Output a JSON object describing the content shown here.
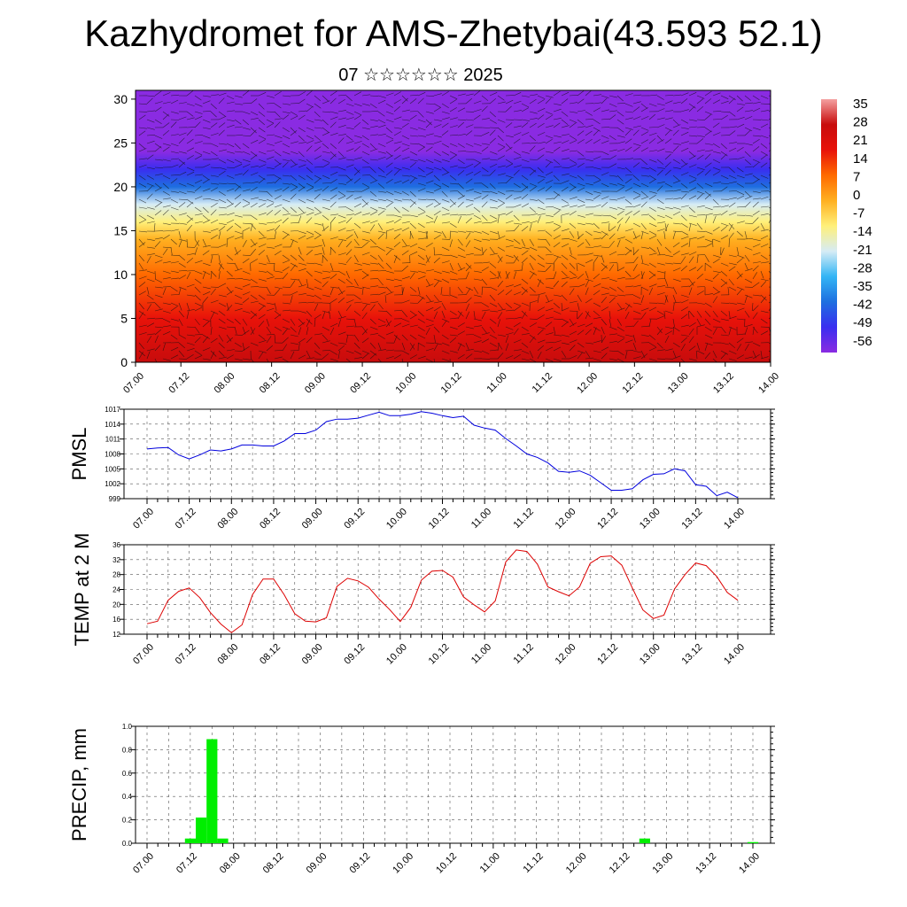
{
  "title": "Kazhydromet for AMS-Zhetybai(43.593 52.1)",
  "subtitle": "07 ☆☆☆☆☆☆ 2025",
  "time_labels": [
    "07.00",
    "07.12",
    "08.00",
    "08.12",
    "09.00",
    "09.12",
    "10.00",
    "10.12",
    "11.00",
    "11.12",
    "12.00",
    "12.12",
    "13.00",
    "13.12",
    "14.00"
  ],
  "chart_data": [
    {
      "type": "heatmap",
      "title": "",
      "ylabel": "",
      "ylim": [
        0,
        31
      ],
      "yticks": [
        0,
        5,
        10,
        15,
        20,
        25,
        30
      ],
      "x": [
        "07.00",
        "07.12",
        "08.00",
        "08.12",
        "09.00",
        "09.12",
        "10.00",
        "10.12",
        "11.00",
        "11.12",
        "12.00",
        "12.12",
        "13.00",
        "13.12",
        "14.00"
      ],
      "colorbar": {
        "labels": [
          "35",
          "28",
          "21",
          "14",
          "7",
          "0",
          "-7",
          "-14",
          "-21",
          "-28",
          "-35",
          "-42",
          "-49",
          "-56"
        ],
        "range": [
          -56,
          35
        ],
        "colors": [
          "#8a2be2",
          "#3a2ef0",
          "#1e6fe0",
          "#33b5f5",
          "#d6ecf5",
          "#fff07a",
          "#ffb020",
          "#ff6a00",
          "#e8120a",
          "#c80c0c",
          "#f4a0a0"
        ]
      },
      "temperature_profile_c": {
        "heights": [
          0,
          5,
          10,
          14,
          16,
          18,
          20,
          22,
          24,
          26,
          28,
          31
        ],
        "values": [
          25,
          18,
          7,
          -3,
          -13,
          -24,
          -36,
          -48,
          -54,
          -58,
          -60,
          -62
        ]
      },
      "overlay": "wind barbs"
    },
    {
      "type": "line",
      "ylabel": "PMSL",
      "ylim": [
        999,
        1017
      ],
      "yticks": [
        999,
        1002,
        1005,
        1008,
        1011,
        1014,
        1017
      ],
      "color": "#0000dd",
      "x_step_hours": 3,
      "values": [
        1009.0,
        1009.2,
        1009.3,
        1007.8,
        1007.0,
        1007.8,
        1008.8,
        1008.6,
        1009.0,
        1009.8,
        1009.8,
        1009.6,
        1009.6,
        1010.6,
        1012.1,
        1012.1,
        1012.8,
        1014.5,
        1015.0,
        1015.0,
        1015.2,
        1015.8,
        1016.4,
        1015.7,
        1015.7,
        1016.0,
        1016.5,
        1016.2,
        1015.7,
        1015.3,
        1015.6,
        1013.8,
        1013.2,
        1012.8,
        1011.1,
        1009.6,
        1008.0,
        1007.3,
        1006.2,
        1004.5,
        1004.3,
        1004.6,
        1003.7,
        1002.2,
        1000.7,
        1000.7,
        1001.0,
        1002.8,
        1003.9,
        1004.0,
        1005.0,
        1004.6,
        1001.8,
        1001.5,
        999.6,
        1000.3,
        999.2
      ]
    },
    {
      "type": "line",
      "ylabel": "TEMP at 2 M",
      "ylim": [
        12,
        36
      ],
      "yticks": [
        12,
        16,
        20,
        24,
        28,
        32,
        36
      ],
      "color": "#dd0000",
      "x_step_hours": 3,
      "values": [
        14.8,
        15.5,
        21.1,
        23.5,
        24.4,
        21.8,
        17.8,
        14.7,
        12.4,
        14.5,
        22.6,
        26.8,
        26.8,
        22.6,
        17.5,
        15.5,
        15.3,
        16.4,
        24.8,
        27.0,
        26.3,
        24.6,
        21.4,
        18.6,
        15.4,
        19.2,
        26.5,
        28.9,
        29.1,
        27.3,
        22.0,
        19.9,
        18.0,
        20.9,
        31.4,
        34.6,
        34.2,
        30.8,
        24.7,
        23.4,
        22.3,
        24.7,
        31.0,
        32.8,
        33.0,
        30.5,
        24.4,
        18.5,
        16.2,
        17.1,
        24.1,
        28.0,
        31.1,
        30.4,
        27.5,
        23.2,
        21.1
      ]
    },
    {
      "type": "bar",
      "ylabel": "PRECIP, mm",
      "ylim": [
        0,
        1.0
      ],
      "yticks": [
        "0.0",
        "0.2",
        "0.4",
        "0.6",
        "0.8",
        "1.0"
      ],
      "color": "#00ee00",
      "x_step_hours": 3,
      "values": [
        0,
        0,
        0,
        0,
        0.04,
        0.22,
        0.89,
        0.04,
        0,
        0,
        0,
        0,
        0,
        0,
        0,
        0,
        0,
        0,
        0,
        0,
        0,
        0,
        0,
        0,
        0,
        0,
        0,
        0,
        0,
        0,
        0,
        0,
        0,
        0,
        0,
        0,
        0,
        0,
        0,
        0,
        0,
        0,
        0,
        0,
        0,
        0,
        0.04,
        0,
        0,
        0,
        0,
        0,
        0,
        0,
        0,
        0,
        0.01
      ]
    }
  ]
}
